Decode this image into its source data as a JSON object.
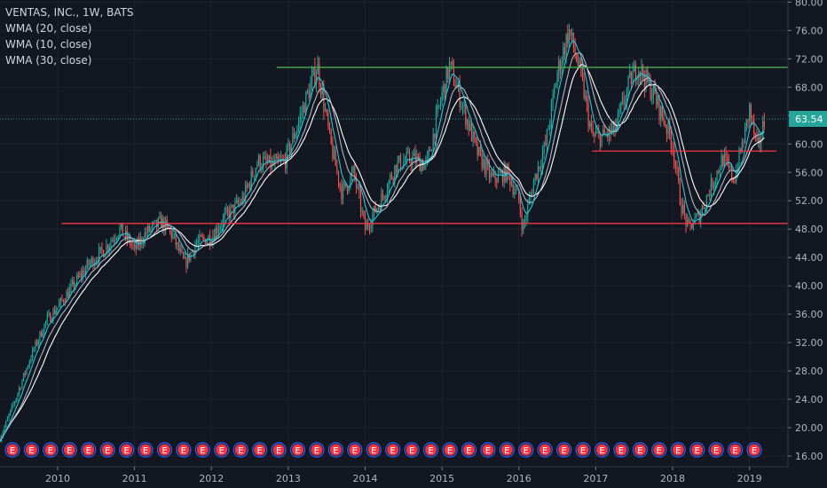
{
  "chart_data": {
    "type": "candlestick",
    "title": "VENTAS, INC., 1W, BATS",
    "indicators": [
      "WMA (20, close)",
      "WMA (10, close)",
      "WMA (30, close)"
    ],
    "x_ticks": [
      "2010",
      "2011",
      "2012",
      "2013",
      "2014",
      "2015",
      "2016",
      "2017",
      "2018",
      "2019"
    ],
    "y_ticks": [
      "80.00",
      "76.00",
      "72.00",
      "68.00",
      "64.00",
      "60.00",
      "56.00",
      "52.00",
      "48.00",
      "44.00",
      "40.00",
      "36.00",
      "32.00",
      "28.00",
      "24.00",
      "20.00",
      "16.00"
    ],
    "ylim": [
      14.5,
      80.3
    ],
    "xlim": [
      2009.25,
      2019.5
    ],
    "last_price": "63.54",
    "earnings_marker_label": "E",
    "earnings_marker_count": 40,
    "horizontal_lines": [
      {
        "y": 70.8,
        "x_start": 2012.85,
        "x_end": 2019.5,
        "color": "#4caf50"
      },
      {
        "y": 48.8,
        "x_start": 2010.05,
        "x_end": 2019.5,
        "color": "#f23645"
      },
      {
        "y": 59.0,
        "x_start": 2016.95,
        "x_end": 2019.35,
        "color": "#f23645"
      }
    ],
    "price_path": [
      [
        2009.25,
        18.5
      ],
      [
        2009.45,
        24
      ],
      [
        2009.65,
        30
      ],
      [
        2009.85,
        35
      ],
      [
        2010.0,
        37
      ],
      [
        2010.2,
        40
      ],
      [
        2010.4,
        43
      ],
      [
        2010.6,
        45
      ],
      [
        2010.8,
        48
      ],
      [
        2010.95,
        46
      ],
      [
        2011.0,
        45
      ],
      [
        2011.15,
        47.5
      ],
      [
        2011.35,
        49
      ],
      [
        2011.5,
        47
      ],
      [
        2011.65,
        43
      ],
      [
        2011.8,
        46
      ],
      [
        2012.0,
        47
      ],
      [
        2012.2,
        50
      ],
      [
        2012.4,
        52
      ],
      [
        2012.6,
        57.5
      ],
      [
        2012.8,
        57
      ],
      [
        2012.95,
        57.5
      ],
      [
        2013.1,
        62
      ],
      [
        2013.25,
        67
      ],
      [
        2013.38,
        71
      ],
      [
        2013.55,
        60
      ],
      [
        2013.7,
        53
      ],
      [
        2013.85,
        56
      ],
      [
        2014.0,
        48
      ],
      [
        2014.2,
        52
      ],
      [
        2014.4,
        57
      ],
      [
        2014.6,
        58
      ],
      [
        2014.8,
        57
      ],
      [
        2015.0,
        67
      ],
      [
        2015.1,
        71
      ],
      [
        2015.25,
        66
      ],
      [
        2015.45,
        59
      ],
      [
        2015.65,
        55
      ],
      [
        2015.85,
        56
      ],
      [
        2016.0,
        52
      ],
      [
        2016.05,
        48
      ],
      [
        2016.2,
        55
      ],
      [
        2016.35,
        60
      ],
      [
        2016.5,
        70
      ],
      [
        2016.65,
        76
      ],
      [
        2016.8,
        70
      ],
      [
        2016.95,
        61
      ],
      [
        2017.1,
        61
      ],
      [
        2017.25,
        62
      ],
      [
        2017.45,
        69
      ],
      [
        2017.55,
        71
      ],
      [
        2017.75,
        67
      ],
      [
        2017.9,
        63
      ],
      [
        2018.0,
        60
      ],
      [
        2018.1,
        52
      ],
      [
        2018.2,
        48
      ],
      [
        2018.35,
        50
      ],
      [
        2018.5,
        54
      ],
      [
        2018.65,
        58
      ],
      [
        2018.8,
        55
      ],
      [
        2018.95,
        62
      ],
      [
        2019.0,
        65
      ],
      [
        2019.1,
        59
      ],
      [
        2019.2,
        63.5
      ]
    ]
  }
}
